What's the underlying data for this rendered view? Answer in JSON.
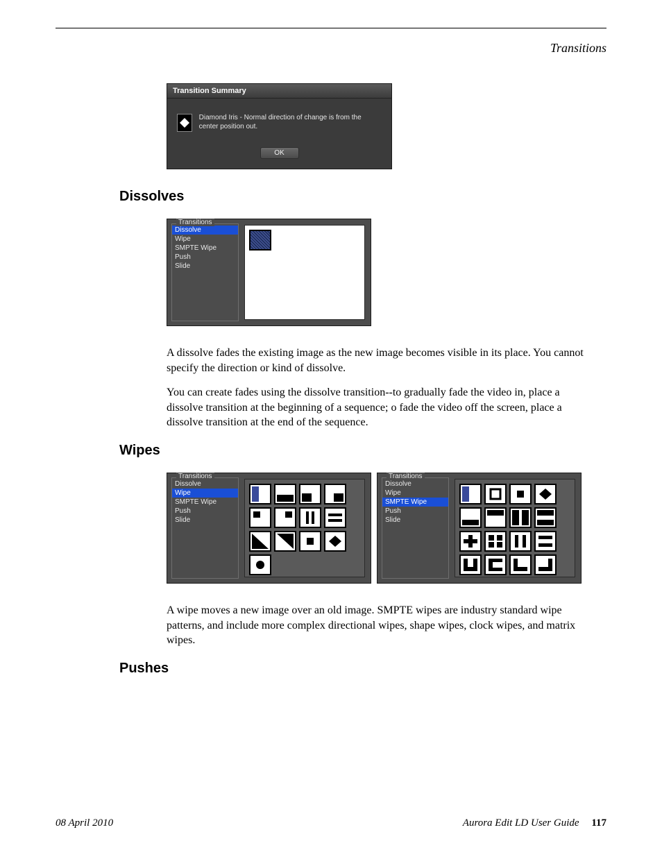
{
  "page": {
    "header_title": "Transitions",
    "footer_date": "08 April 2010",
    "footer_title": "Aurora Edit LD User Guide",
    "footer_page": "117"
  },
  "summary_dialog": {
    "title": "Transition Summary",
    "description": "Diamond Iris - Normal direction of change is from the center position out.",
    "icon_name": "diamond-iris-icon",
    "ok_label": "OK"
  },
  "sections": {
    "dissolves": {
      "heading": "Dissolves",
      "para1": "A dissolve fades the existing image as the new image becomes visible in its place. You cannot specify the direction or kind of dissolve.",
      "para2": "You can create fades using the dissolve transition--to gradually fade the video in, place a dissolve transition at the beginning of a sequence; o fade the video off the screen, place a dissolve transition at the end of the sequence."
    },
    "wipes": {
      "heading": "Wipes",
      "para1": "A wipe moves a new image over an old image. SMPTE wipes are industry standard wipe patterns, and include more complex directional wipes, shape wipes, clock wipes, and matrix wipes."
    },
    "pushes": {
      "heading": "Pushes"
    }
  },
  "transitions_panel": {
    "group_title": "Transitions",
    "items": [
      "Dissolve",
      "Wipe",
      "SMPTE Wipe",
      "Push",
      "Slide"
    ]
  },
  "dissolve_panel": {
    "selected_index": 0,
    "thumb_count": 1
  },
  "wipe_panel_left": {
    "selected_index": 1,
    "thumbs": [
      "fill-left",
      "reveal-bottom",
      "reveal-bl",
      "reveal-br",
      "box-tl",
      "box-tr",
      "bars-v",
      "bars-h",
      "diag",
      "diag-inv",
      "box-center",
      "diamond",
      "circle"
    ]
  },
  "wipe_panel_right": {
    "selected_index": 2,
    "thumbs": [
      "fill-left",
      "box-outline",
      "box-center",
      "diamond",
      "reveal-b",
      "reveal-t",
      "split-v",
      "split-h",
      "plus",
      "grid4",
      "bars-v2",
      "bars-h2",
      "u-shape",
      "c-shape",
      "l-shape",
      "l-shape2"
    ]
  },
  "colors": {
    "page_bg": "#ffffff",
    "text": "#000000",
    "dlg_bg": "#3b3b3b",
    "dlg_text": "#e5e5e5",
    "panel_bg": "#4c4c4c",
    "panel_border": "#1a1a1a",
    "list_border": "#6e6e6e",
    "selected_bg": "#1a4fd6",
    "selected_fg": "#ffffff",
    "canvas_white": "#ffffff",
    "rule": "#000000"
  }
}
